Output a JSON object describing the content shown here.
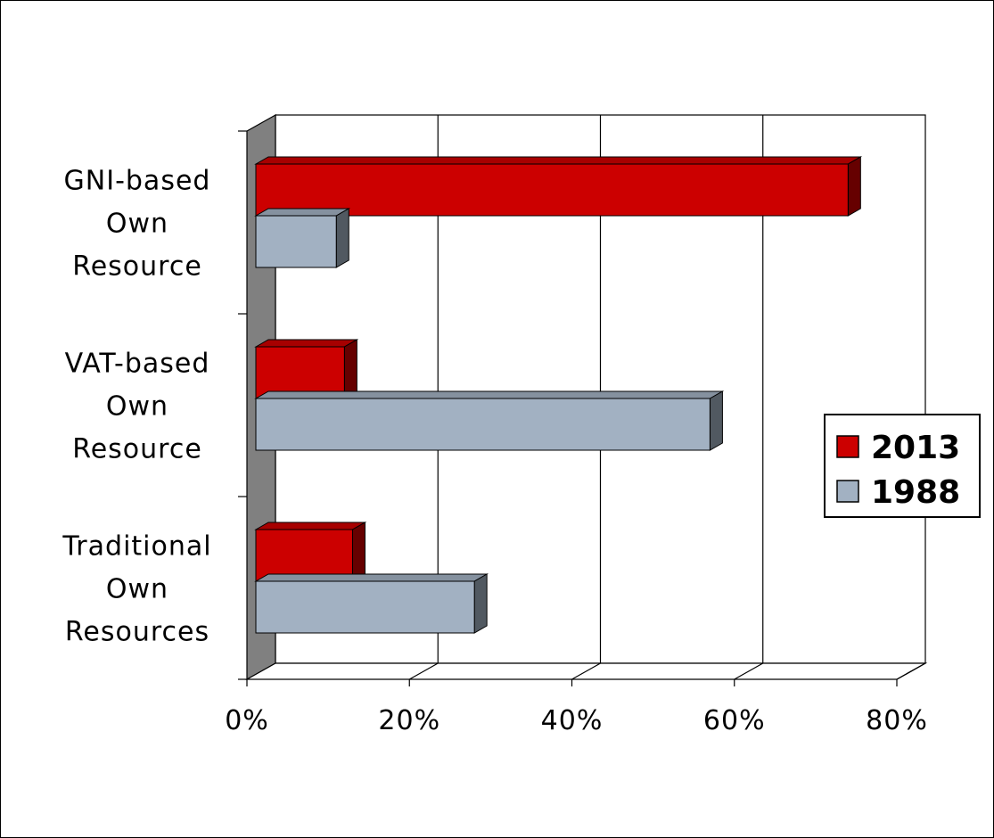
{
  "chart_data": {
    "type": "bar",
    "orientation": "horizontal",
    "style": "3d",
    "categories": [
      [
        "GNI-based",
        "Own",
        "Resource"
      ],
      [
        "VAT-based",
        "Own",
        "Resource"
      ],
      [
        "Traditional",
        "Own",
        "Resources"
      ]
    ],
    "series": [
      {
        "name": "2013",
        "color": "#cc0000",
        "values": [
          74,
          12,
          13
        ]
      },
      {
        "name": "1988",
        "color": "#a2b1c2",
        "values": [
          11,
          57,
          28
        ]
      }
    ],
    "xlim": [
      0,
      80
    ],
    "xticks": [
      0,
      20,
      40,
      60,
      80
    ],
    "xtick_labels": [
      "0%",
      "20%",
      "40%",
      "60%",
      "80%"
    ],
    "grid": "vertical",
    "legend_position": "right"
  }
}
